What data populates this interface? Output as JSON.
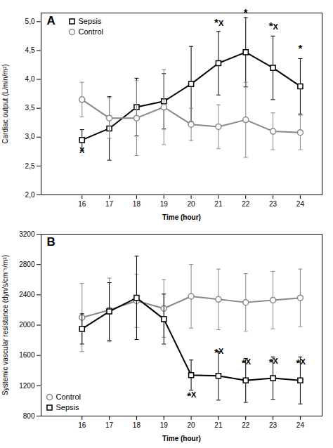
{
  "chart_data": [
    {
      "type": "line",
      "title": "A",
      "xlabel": "Time (hour)",
      "ylabel": "Cardiac output (L/min/m²)",
      "x": [
        16,
        17,
        18,
        19,
        20,
        21,
        22,
        23,
        24
      ],
      "xlim": [
        14.5,
        24.8
      ],
      "xticks": [
        16,
        17,
        18,
        19,
        20,
        21,
        22,
        23,
        24
      ],
      "ylim": [
        2.0,
        5.15
      ],
      "yticks": [
        {
          "value": 2.0,
          "label": "2,0"
        },
        {
          "value": 2.5,
          "label": "2,5"
        },
        {
          "value": 3.0,
          "label": "3,0"
        },
        {
          "value": 3.5,
          "label": "3,5"
        },
        {
          "value": 4.0,
          "label": "4,0"
        },
        {
          "value": 4.5,
          "label": "4,5"
        },
        {
          "value": 5.0,
          "label": "5,0"
        }
      ],
      "series": [
        {
          "name": "Sepsis",
          "color": "#000000",
          "marker": "square",
          "values": [
            2.95,
            3.15,
            3.52,
            3.62,
            3.92,
            4.28,
            4.47,
            4.2,
            3.88
          ],
          "errors": [
            0.18,
            0.55,
            0.5,
            0.48,
            0.65,
            0.55,
            0.6,
            0.55,
            0.48
          ]
        },
        {
          "name": "Control",
          "color": "#888888",
          "marker": "circle",
          "values": [
            3.65,
            3.33,
            3.33,
            3.52,
            3.22,
            3.18,
            3.3,
            3.1,
            3.08
          ],
          "errors": [
            0.3,
            0.35,
            0.65,
            0.65,
            0.28,
            0.38,
            0.65,
            0.32,
            0.3
          ]
        }
      ],
      "annotations": [
        {
          "x": 16,
          "y": 2.82,
          "text": "X"
        },
        {
          "x": 21,
          "y": 4.93,
          "text": "*"
        },
        {
          "x": 21,
          "y": 4.93,
          "text": "X"
        },
        {
          "x": 22,
          "y": 5.1,
          "text": "*"
        },
        {
          "x": 23,
          "y": 4.87,
          "text": "*"
        },
        {
          "x": 23,
          "y": 4.87,
          "text": "X"
        },
        {
          "x": 24,
          "y": 4.47,
          "text": "*"
        }
      ],
      "legend": "upper left",
      "grid": false
    },
    {
      "type": "line",
      "title": "B",
      "xlabel": "Time (hour)",
      "ylabel": "Systemic vascular resistance (dyn/s/cm⁻⁵/m²)",
      "x": [
        16,
        17,
        18,
        19,
        20,
        21,
        22,
        23,
        24
      ],
      "xlim": [
        14.5,
        24.8
      ],
      "xticks": [
        16,
        17,
        18,
        19,
        20,
        21,
        22,
        23,
        24
      ],
      "ylim": [
        800,
        3200
      ],
      "yticks": [
        800,
        1200,
        1600,
        2000,
        2400,
        2800,
        3200
      ],
      "series": [
        {
          "name": "Control",
          "color": "#888888",
          "marker": "circle",
          "values": [
            2100,
            2200,
            2320,
            2220,
            2380,
            2340,
            2300,
            2330,
            2360
          ],
          "errors": [
            450,
            420,
            350,
            380,
            420,
            400,
            380,
            380,
            380
          ]
        },
        {
          "name": "Sepsis",
          "color": "#000000",
          "marker": "square",
          "values": [
            1950,
            2180,
            2360,
            2080,
            1340,
            1330,
            1270,
            1300,
            1270
          ],
          "errors": [
            200,
            380,
            550,
            330,
            200,
            320,
            290,
            280,
            310
          ]
        }
      ],
      "annotations": [
        {
          "x": 20,
          "y": 1120,
          "text": "*"
        },
        {
          "x": 20,
          "y": 1120,
          "text": "X"
        },
        {
          "x": 21,
          "y": 1690,
          "text": "*"
        },
        {
          "x": 21,
          "y": 1690,
          "text": "X"
        },
        {
          "x": 22,
          "y": 1550,
          "text": "*"
        },
        {
          "x": 22,
          "y": 1550,
          "text": "X"
        },
        {
          "x": 23,
          "y": 1560,
          "text": "*"
        },
        {
          "x": 23,
          "y": 1560,
          "text": "X"
        },
        {
          "x": 24,
          "y": 1550,
          "text": "*"
        },
        {
          "x": 24,
          "y": 1550,
          "text": "X"
        }
      ],
      "legend": "lower left",
      "grid": false
    }
  ]
}
